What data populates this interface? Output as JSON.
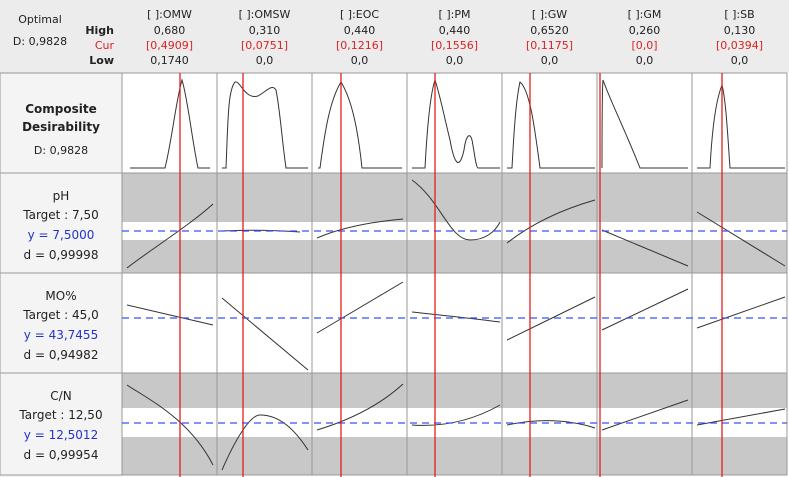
{
  "optimal": {
    "label": "Optimal",
    "d": "D: 0,9828"
  },
  "row_labels": [
    "High",
    "Cur",
    "Low"
  ],
  "factors": [
    {
      "name": "[ ]:OMW",
      "high": "0,680",
      "cur": "[0,4909]",
      "low": "0,1740"
    },
    {
      "name": "[ ]:OMSW",
      "high": "0,310",
      "cur": "[0,0751]",
      "low": "0,0"
    },
    {
      "name": "[ ]:EOC",
      "high": "0,440",
      "cur": "[0,1216]",
      "low": "0,0"
    },
    {
      "name": "[ ]:PM",
      "high": "0,440",
      "cur": "[0,1556]",
      "low": "0,0"
    },
    {
      "name": "[ ]:GW",
      "high": "0,6520",
      "cur": "[0,1175]",
      "low": "0,0"
    },
    {
      "name": "[ ]:GM",
      "high": "0,260",
      "cur": "[0,0]",
      "low": "0,0"
    },
    {
      "name": "[ ]:SB",
      "high": "0,130",
      "cur": "[0,0394]",
      "low": "0,0"
    }
  ],
  "composite": {
    "name": "Composite Desirability",
    "d": "D: 0,9828"
  },
  "responses": [
    {
      "name": "pH",
      "target": "Target : 7,50",
      "y": "y = 7,5000",
      "d": "d = 0,99998"
    },
    {
      "name": "MO%",
      "target": "Target : 45,0",
      "y": "y = 43,7455",
      "d": "d = 0,94982"
    },
    {
      "name": "C/N",
      "target": "Target : 12,50",
      "y": "y = 12,5012",
      "d": "d = 0,99954"
    }
  ]
}
